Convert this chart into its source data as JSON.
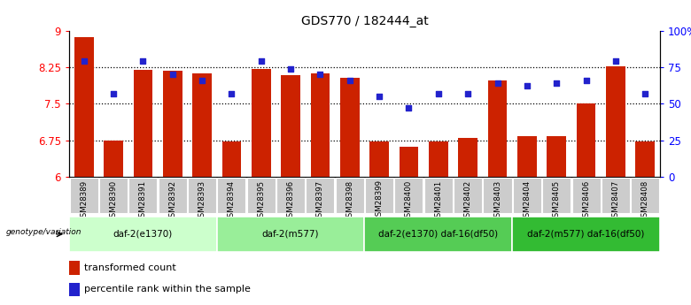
{
  "title": "GDS770 / 182444_at",
  "samples": [
    "GSM28389",
    "GSM28390",
    "GSM28391",
    "GSM28392",
    "GSM28393",
    "GSM28394",
    "GSM28395",
    "GSM28396",
    "GSM28397",
    "GSM28398",
    "GSM28399",
    "GSM28400",
    "GSM28401",
    "GSM28402",
    "GSM28403",
    "GSM28404",
    "GSM28405",
    "GSM28406",
    "GSM28407",
    "GSM28408"
  ],
  "bar_values": [
    8.87,
    6.74,
    8.19,
    8.17,
    8.12,
    6.73,
    8.22,
    8.08,
    8.13,
    8.03,
    6.73,
    6.62,
    6.73,
    6.79,
    7.98,
    6.83,
    6.84,
    7.5,
    8.26,
    6.73
  ],
  "bar_color": "#cc2200",
  "dot_color": "#2222cc",
  "ylim_left": [
    6.0,
    9.0
  ],
  "ylim_right": [
    0,
    100
  ],
  "yticks_left": [
    6.0,
    6.75,
    7.5,
    8.25,
    9.0
  ],
  "ytick_labels_left": [
    "6",
    "6.75",
    "7.5",
    "8.25",
    "9"
  ],
  "yticks_right": [
    0,
    25,
    50,
    75,
    100
  ],
  "ytick_labels_right": [
    "0",
    "25",
    "50",
    "75",
    "100%"
  ],
  "hlines": [
    6.75,
    7.5,
    8.25
  ],
  "groups": [
    {
      "label": "daf-2(e1370)",
      "start": 0,
      "end": 4,
      "color": "#ccffcc"
    },
    {
      "label": "daf-2(m577)",
      "start": 5,
      "end": 9,
      "color": "#99ee99"
    },
    {
      "label": "daf-2(e1370) daf-16(df50)",
      "start": 10,
      "end": 14,
      "color": "#55cc55"
    },
    {
      "label": "daf-2(m577) daf-16(df50)",
      "start": 15,
      "end": 19,
      "color": "#33bb33"
    }
  ],
  "genotype_label": "genotype/variation",
  "legend_bar_label": "transformed count",
  "legend_dot_label": "percentile rank within the sample",
  "dot_percentiles": [
    79,
    57,
    79,
    70,
    66,
    57,
    79,
    74,
    70,
    66,
    55,
    47,
    57,
    57,
    64,
    62,
    64,
    66,
    79,
    57
  ]
}
